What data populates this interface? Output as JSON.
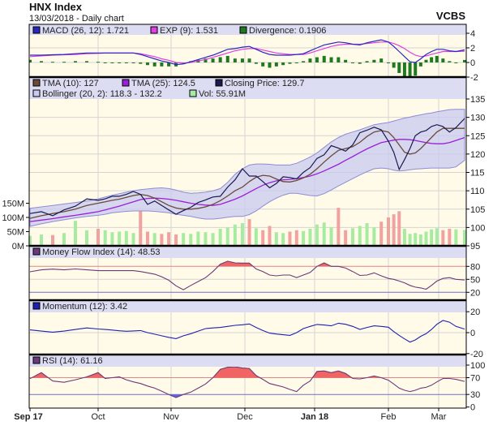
{
  "header": {
    "title": "HNX Index",
    "subtitle": "13/03/2018 - Daily chart",
    "brand": "VCBS"
  },
  "colors": {
    "panel_bg": "#fffbe8",
    "legend_bg": "#dcdcf2",
    "grid": "#d4d4d4",
    "close": "#1a1a4e",
    "tma10": "#6b4a3a",
    "tma25": "#9a20d8",
    "bollinger_fill": "#c9c9f2",
    "bollinger_edge": "#8c8cd6",
    "vol_up": "#a6eca0",
    "vol_down": "#f0a2a0",
    "macd": "#2828c0",
    "exp": "#e040e0",
    "divergence": "#1e7a1e",
    "overbought": "#f06464",
    "oversold": "#6464e0",
    "upper_line": "#e08888",
    "lower_line": "#7070c8",
    "momentum": "#2020b0",
    "osc_line": "#6a3a7a"
  },
  "chart_data": {
    "type": "line",
    "dates": [
      "2017-09-13",
      "2017-09-16",
      "2017-09-19",
      "2017-09-22",
      "2017-09-25",
      "2017-09-28",
      "2017-10-01",
      "2017-10-04",
      "2017-10-07",
      "2017-10-10",
      "2017-10-13",
      "2017-10-16",
      "2017-10-19",
      "2017-10-22",
      "2017-10-25",
      "2017-10-28",
      "2017-10-31",
      "2017-11-03",
      "2017-11-06",
      "2017-11-09",
      "2017-11-12",
      "2017-11-15",
      "2017-11-18",
      "2017-11-21",
      "2017-11-24",
      "2017-11-27",
      "2017-11-30",
      "2017-12-03",
      "2017-12-06",
      "2017-12-09",
      "2017-12-12",
      "2017-12-15",
      "2017-12-18",
      "2017-12-21",
      "2017-12-24",
      "2017-12-27",
      "2017-12-30",
      "2018-01-02",
      "2018-01-05",
      "2018-01-08",
      "2018-01-11",
      "2018-01-14",
      "2018-01-17",
      "2018-01-20",
      "2018-01-23",
      "2018-01-26",
      "2018-01-29",
      "2018-02-01",
      "2018-02-04",
      "2018-02-07",
      "2018-02-10",
      "2018-02-13",
      "2018-02-16",
      "2018-02-19",
      "2018-02-22",
      "2018-02-25",
      "2018-02-28",
      "2018-03-03",
      "2018-03-06",
      "2018-03-09",
      "2018-03-13"
    ],
    "x_ticks": [
      {
        "label": "Sep 17",
        "date": "2017-09-13",
        "bold": true
      },
      {
        "label": "Oct",
        "date": "2017-10-01",
        "bold": false
      },
      {
        "label": "Nov",
        "date": "2017-11-01",
        "bold": false
      },
      {
        "label": "Dec",
        "date": "2017-12-01",
        "bold": false
      },
      {
        "label": "Jan 18",
        "date": "2018-01-01",
        "bold": true
      },
      {
        "label": "Feb",
        "date": "2018-02-01",
        "bold": false
      },
      {
        "label": "Mar",
        "date": "2018-03-01",
        "bold": false
      }
    ],
    "macd_panel": {
      "legend": [
        {
          "label": "MACD (26, 12): 1.721",
          "color_key": "macd"
        },
        {
          "label": "EXP (9): 1.531",
          "color_key": "exp"
        },
        {
          "label": "Divergence: 0.1906",
          "color_key": "divergence"
        }
      ],
      "yticks": [
        "4",
        "2",
        "0",
        "-2"
      ],
      "ylim": [
        -2,
        4
      ],
      "macd": [
        1.0,
        1.0,
        1.05,
        1.1,
        1.2,
        1.3,
        1.3,
        1.3,
        1.3,
        1.3,
        1.3,
        1.3,
        1.1,
        0.8,
        0.5,
        0.2,
        0.0,
        -0.3,
        -0.2,
        0.1,
        0.4,
        0.7,
        1.0,
        1.4,
        1.8,
        1.9,
        2.1,
        2.2,
        1.8,
        1.4,
        1.1,
        1.0,
        1.0,
        1.0,
        1.1,
        1.2,
        1.6,
        2.0,
        2.4,
        2.6,
        2.8,
        2.7,
        2.5,
        2.4,
        2.7,
        2.9,
        3.1,
        2.8,
        2.2,
        1.5,
        0.8,
        0.1,
        0.0,
        0.5,
        1.1,
        1.5,
        1.8,
        1.8,
        1.6,
        1.5,
        1.721
      ],
      "exp": [
        0.8,
        0.9,
        1.0,
        1.05,
        1.1,
        1.2,
        1.25,
        1.3,
        1.3,
        1.3,
        1.3,
        1.3,
        1.2,
        1.0,
        0.8,
        0.5,
        0.3,
        0.0,
        -0.1,
        0.0,
        0.2,
        0.4,
        0.7,
        1.0,
        1.3,
        1.6,
        1.8,
        1.9,
        1.9,
        1.7,
        1.5,
        1.3,
        1.2,
        1.1,
        1.1,
        1.1,
        1.3,
        1.6,
        1.9,
        2.2,
        2.4,
        2.5,
        2.5,
        2.5,
        2.6,
        2.7,
        2.8,
        2.8,
        2.6,
        2.3,
        1.9,
        1.4,
        1.0,
        0.8,
        0.9,
        1.1,
        1.3,
        1.5,
        1.5,
        1.5,
        1.531
      ],
      "divergence": [
        0.2,
        0.1,
        0.05,
        0.05,
        0.1,
        0.1,
        0.05,
        0,
        0,
        0,
        0,
        0,
        -0.1,
        -0.2,
        -0.3,
        -0.3,
        -0.3,
        -0.3,
        -0.1,
        0.1,
        0.2,
        0.3,
        0.3,
        0.4,
        0.5,
        0.3,
        0.3,
        0.3,
        -0.1,
        -0.3,
        -0.4,
        -0.3,
        -0.2,
        -0.1,
        0,
        0.1,
        0.3,
        0.4,
        0.5,
        0.4,
        0.4,
        0.2,
        0,
        -0.1,
        0.1,
        0.2,
        0.3,
        0,
        -0.4,
        -0.8,
        -1.1,
        -1.3,
        -1.0,
        -0.3,
        0.2,
        0.4,
        0.5,
        0.3,
        0.1,
        0,
        0.1906
      ]
    },
    "price_panel": {
      "legend_row1": [
        {
          "label": "TMA (10): 127",
          "color_key": "tma10"
        },
        {
          "label": "TMA (25): 124.5",
          "color_key": "tma25"
        },
        {
          "label": "Closing Price: 129.7",
          "color_key": "close"
        }
      ],
      "legend_row2": [
        {
          "label": "Bollinger (20, 2): 118.3 - 132.2",
          "color_key": "bollinger_fill"
        },
        {
          "label": "Vol: 55.91M",
          "color_key": "vol_up"
        }
      ],
      "yticks": [
        "135",
        "130",
        "125",
        "120",
        "115",
        "110",
        "105",
        "100",
        "95"
      ],
      "ylim": [
        95,
        135
      ],
      "vol_ticks": [
        "150M",
        "100M",
        "50M",
        "0M"
      ],
      "vol_tick_values": [
        150,
        100,
        50,
        0
      ],
      "close": [
        103.8,
        104.3,
        103.2,
        104.8,
        105.8,
        107.8,
        107.4,
        107.8,
        108.5,
        108.5,
        109,
        109.8,
        109,
        106.3,
        107.2,
        106,
        104.8,
        103.6,
        104.6,
        105.5,
        106.8,
        107.5,
        108.3,
        108.5,
        111,
        113,
        116,
        114,
        114,
        112.5,
        110.8,
        112,
        113.8,
        113.6,
        113.2,
        115,
        116.3,
        118.8,
        119.8,
        122.3,
        121.6,
        120.8,
        122.5,
        125.8,
        126.5,
        127.3,
        126.6,
        123.5,
        120.5,
        115.8,
        118.5,
        121.5,
        125,
        126,
        126.4,
        127.5,
        128,
        127.5,
        126,
        127.2,
        129.7
      ],
      "tma10": [
        102.5,
        103.2,
        103.8,
        104.3,
        105,
        106,
        106.6,
        107,
        107.4,
        107.7,
        108.2,
        108.7,
        109,
        108.7,
        108,
        107,
        106,
        105.3,
        105,
        105,
        105.2,
        105.6,
        106.3,
        107.3,
        108.6,
        110,
        111,
        112.5,
        113.7,
        114.2,
        114,
        113.2,
        112.5,
        112.4,
        112.8,
        113.5,
        114.5,
        116,
        117.8,
        119.5,
        121,
        121.5,
        122,
        123.2,
        124.8,
        126,
        126.4,
        126,
        124.5,
        122.5,
        120.5,
        120,
        120.3,
        121.5,
        123,
        124.5,
        126,
        127,
        127,
        127,
        127
      ],
      "tma25": [
        101.6,
        102,
        102.4,
        102.9,
        103.3,
        103.8,
        104.3,
        104.8,
        105.3,
        105.8,
        106.4,
        107,
        107.6,
        107.9,
        108,
        107.9,
        107.7,
        107.4,
        107,
        106.6,
        106.3,
        106.1,
        106,
        106.3,
        107,
        107.7,
        108.6,
        109.6,
        110.6,
        111.5,
        112.2,
        112.7,
        113,
        113.1,
        113.3,
        113.6,
        114,
        114.6,
        115.4,
        116.3,
        117.2,
        118.3,
        119.3,
        120.4,
        121.4,
        122.3,
        123.1,
        123.5,
        123.8,
        124,
        124,
        123.9,
        123.7,
        123.4,
        123.1,
        122.9,
        122.8,
        122.8,
        123.1,
        123.7,
        124.5
      ],
      "bollinger_upper": [
        105.2,
        105.6,
        106,
        106.4,
        106.8,
        107.2,
        107.8,
        108.3,
        108.8,
        109.2,
        109.6,
        110,
        110.3,
        110.5,
        110.7,
        110.8,
        110.6,
        110.2,
        109.6,
        109.3,
        109.4,
        109.6,
        110,
        110.6,
        112.3,
        114.5,
        116,
        117,
        117.3,
        117.3,
        117.2,
        117,
        117,
        117,
        117.5,
        118.3,
        119.2,
        120.3,
        121.8,
        123.3,
        124.5,
        125.4,
        126,
        126.6,
        127.3,
        128,
        128.3,
        128.6,
        129,
        129.4,
        129.8,
        130.1,
        130.4,
        130.7,
        131,
        131.2,
        131.5,
        131.8,
        132.1,
        132.2,
        132.2
      ],
      "bollinger_lower": [
        100.3,
        101,
        101.6,
        102.1,
        102.6,
        103,
        103.3,
        103.6,
        104,
        104.2,
        104.4,
        104.5,
        104.5,
        104.5,
        104.4,
        104.2,
        104,
        103.6,
        103.3,
        103,
        102.6,
        102.3,
        102.3,
        102.5,
        102.8,
        103,
        103,
        103.5,
        104.5,
        105.8,
        107,
        108,
        108.8,
        109.3,
        109.3,
        109,
        108.7,
        108.6,
        109.2,
        110.2,
        111.3,
        112.3,
        113.3,
        114.3,
        115.2,
        116,
        116.2,
        116,
        115.6,
        115.4,
        115.5,
        115.7,
        115.9,
        116,
        116.1,
        116.2,
        116.2,
        116.2,
        116.2,
        116.5,
        118.3
      ],
      "volume_m": [
        35,
        40,
        38,
        45,
        88,
        55,
        60,
        55,
        48,
        50,
        52,
        45,
        122,
        50,
        45,
        42,
        48,
        40,
        45,
        42,
        50,
        48,
        45,
        60,
        65,
        75,
        80,
        94,
        62,
        55,
        70,
        48,
        45,
        50,
        55,
        52,
        60,
        75,
        82,
        65,
        134,
        55,
        62,
        70,
        80,
        65,
        85,
        100,
        111,
        122,
        60,
        42,
        45,
        40,
        50,
        58,
        62,
        55,
        60,
        58,
        55.91
      ]
    },
    "mfi_panel": {
      "legend": [
        {
          "label": "Money Flow Index (14): 48.53",
          "color_key": "osc_line"
        }
      ],
      "yticks": [
        {
          "label": "80",
          "value": 80,
          "color_key": "upper_line"
        },
        {
          "label": "50",
          "value": 50,
          "color_key": "grid"
        },
        {
          "label": "20",
          "value": 20,
          "color_key": "lower_line"
        }
      ],
      "upper": 80,
      "lower": 20,
      "values": [
        67.5,
        72,
        73.7,
        72,
        74,
        72,
        70,
        70,
        70,
        70,
        70,
        70,
        68,
        65,
        62,
        56,
        48,
        35,
        26,
        36,
        45,
        54,
        68,
        85,
        92,
        88,
        87.5,
        87.5,
        74,
        68,
        60,
        58,
        60,
        60,
        54,
        60,
        66,
        80,
        88,
        80,
        80,
        76,
        68,
        59,
        60,
        65,
        58,
        52,
        50,
        46,
        42,
        36,
        32,
        30,
        27,
        36,
        46,
        52,
        54,
        50,
        48.53
      ]
    },
    "momentum_panel": {
      "legend": [
        {
          "label": "Momentum (12): 3.42",
          "color_key": "momentum"
        }
      ],
      "yticks": [
        {
          "label": "20",
          "value": 20
        },
        {
          "label": "0",
          "value": 0
        },
        {
          "label": "-20",
          "value": -20
        }
      ],
      "values": [
        2.6,
        1.5,
        0.5,
        1.5,
        3,
        4.5,
        3.5,
        3,
        2.5,
        1.8,
        1.3,
        1.6,
        2,
        0,
        -1.5,
        -3,
        -4.5,
        -5.7,
        -3,
        -1,
        1.5,
        3.9,
        4.5,
        5,
        6,
        7,
        7.5,
        8.3,
        5,
        2,
        -0.5,
        -1.3,
        -2,
        -2.6,
        0,
        3.9,
        6,
        7.8,
        7.3,
        6.5,
        9,
        8,
        6,
        3.1,
        5,
        6.5,
        6,
        5.2,
        1,
        -2.6,
        -6,
        -9,
        -7,
        -3.5,
        -1,
        3,
        8,
        11.6,
        10,
        6,
        3.42
      ]
    },
    "rsi_panel": {
      "legend": [
        {
          "label": "RSI (14): 61.16",
          "color_key": "osc_line"
        }
      ],
      "yticks": [
        {
          "label": "100",
          "value": 100,
          "color_key": "grid"
        },
        {
          "label": "70",
          "value": 70,
          "color_key": "upper_line"
        },
        {
          "label": "30",
          "value": 30,
          "color_key": "lower_line"
        },
        {
          "label": "0",
          "value": 0,
          "color_key": "grid"
        }
      ],
      "upper": 70,
      "lower": 30,
      "values": [
        67.7,
        82,
        62,
        59,
        65,
        72,
        82,
        68,
        70,
        72,
        65,
        60,
        56,
        50,
        45,
        38,
        30,
        22.6,
        30,
        35.6,
        45,
        55,
        70,
        90,
        95,
        96,
        93,
        92,
        75,
        66,
        56,
        52,
        48,
        42,
        37,
        52,
        62,
        85,
        86,
        82,
        86,
        80,
        68,
        67,
        70,
        74,
        70,
        64,
        55,
        45,
        40,
        37,
        40,
        45,
        47,
        52,
        60,
        68,
        68,
        66,
        61.16
      ]
    }
  }
}
